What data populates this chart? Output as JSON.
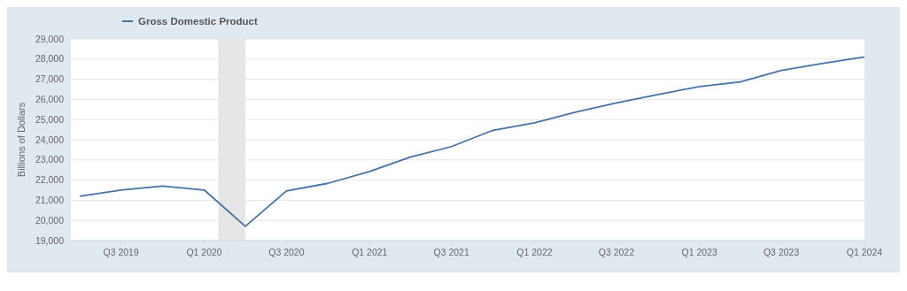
{
  "chart_data": {
    "type": "line",
    "ylabel": "Billions of Dollars",
    "x": [
      "2019-04-01",
      "2019-07-01",
      "2019-10-01",
      "2020-01-01",
      "2020-04-01",
      "2020-07-01",
      "2020-10-01",
      "2021-01-01",
      "2021-04-01",
      "2021-07-01",
      "2021-10-01",
      "2022-01-01",
      "2022-04-01",
      "2022-07-01",
      "2022-10-01",
      "2023-01-01",
      "2023-04-01",
      "2023-07-01",
      "2023-10-01",
      "2024-01-01"
    ],
    "series": [
      {
        "name": "Gross Domestic Product",
        "color": "#4572a7",
        "values": [
          21200,
          21510,
          21700,
          21510,
          19710,
          21460,
          21840,
          22430,
          23140,
          23660,
          24470,
          24840,
          25360,
          25830,
          26240,
          26640,
          26870,
          27440,
          27790,
          28110
        ]
      }
    ],
    "xlim": [
      "2019-03-12",
      "2024-01-01"
    ],
    "xticks": [
      {
        "value": "2019-07-01",
        "label": "Q3 2019"
      },
      {
        "value": "2020-01-01",
        "label": "Q1 2020"
      },
      {
        "value": "2020-07-01",
        "label": "Q3 2020"
      },
      {
        "value": "2021-01-01",
        "label": "Q1 2021"
      },
      {
        "value": "2021-07-01",
        "label": "Q3 2021"
      },
      {
        "value": "2022-01-01",
        "label": "Q1 2022"
      },
      {
        "value": "2022-07-01",
        "label": "Q3 2022"
      },
      {
        "value": "2023-01-01",
        "label": "Q1 2023"
      },
      {
        "value": "2023-07-01",
        "label": "Q3 2023"
      },
      {
        "value": "2024-01-01",
        "label": "Q1 2024"
      }
    ],
    "ylim": [
      19000,
      29000
    ],
    "yticks": [
      {
        "value": 19000,
        "label": "19,000"
      },
      {
        "value": 20000,
        "label": "20,000"
      },
      {
        "value": 21000,
        "label": "21,000"
      },
      {
        "value": 22000,
        "label": "22,000"
      },
      {
        "value": 23000,
        "label": "23,000"
      },
      {
        "value": 24000,
        "label": "24,000"
      },
      {
        "value": 25000,
        "label": "25,000"
      },
      {
        "value": 26000,
        "label": "26,000"
      },
      {
        "value": 27000,
        "label": "27,000"
      },
      {
        "value": 28000,
        "label": "28,000"
      },
      {
        "value": 29000,
        "label": "29,000"
      }
    ],
    "bands": [
      {
        "axis": "x",
        "from": "2020-02-01",
        "to": "2020-04-01",
        "color": "#e6e6e6"
      }
    ],
    "grid": "y",
    "legend": "top left",
    "line_style": "solid",
    "marker": "none"
  }
}
